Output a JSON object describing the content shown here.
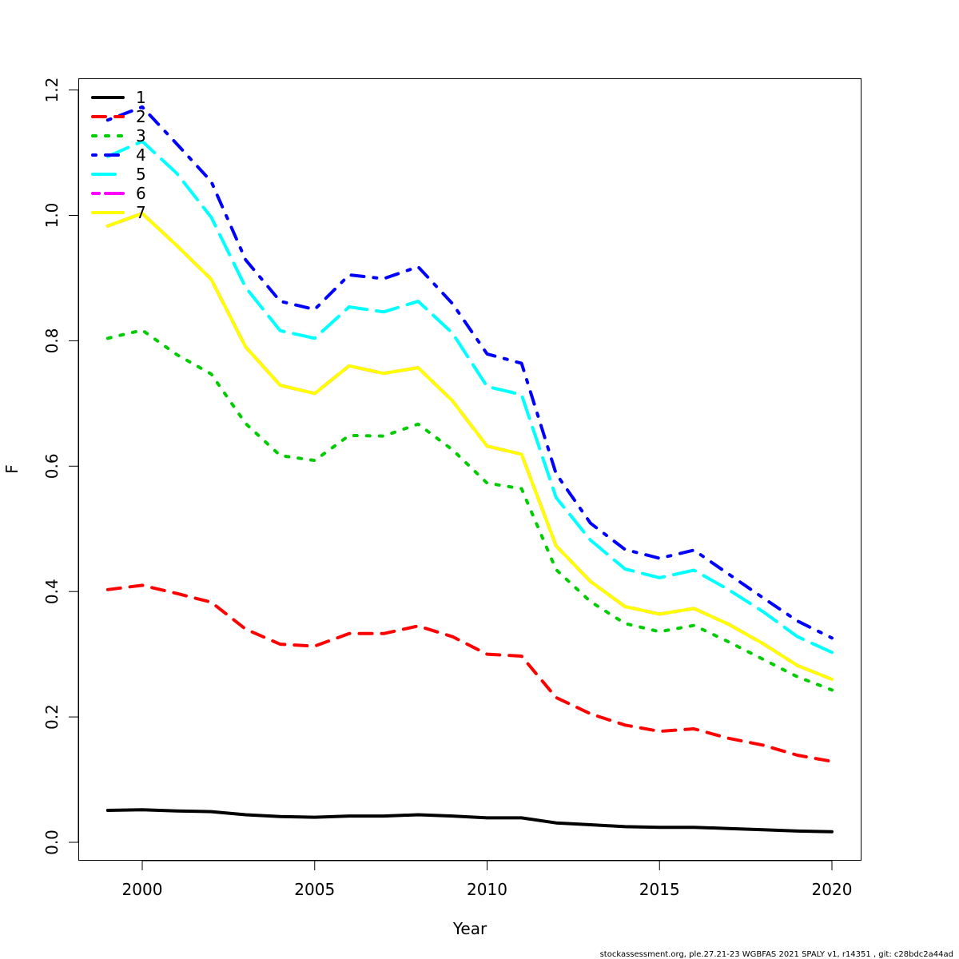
{
  "chart_data": {
    "type": "line",
    "title": "",
    "xlabel": "Year",
    "ylabel": "F",
    "xlim": [
      1998.2,
      2020.85
    ],
    "ylim": [
      -0.028,
      1.228
    ],
    "xticks": [
      2000,
      2005,
      2010,
      2015,
      2020
    ],
    "xtick_labels": [
      "2000",
      "2005",
      "2010",
      "2015",
      "2020"
    ],
    "yticks": [
      0.0,
      0.2,
      0.4,
      0.6,
      0.8,
      1.0,
      1.2
    ],
    "ytick_labels": [
      "0.0",
      "0.2",
      "0.4",
      "0.6",
      "0.8",
      "1.0",
      "1.2"
    ],
    "grid": false,
    "legend_position": "top-left",
    "x": [
      1999,
      2000,
      2001,
      2002,
      2003,
      2004,
      2005,
      2006,
      2007,
      2008,
      2009,
      2010,
      2011,
      2012,
      2013,
      2014,
      2015,
      2016,
      2017,
      2018,
      2019,
      2020
    ],
    "series": [
      {
        "name": "1",
        "color": "#000000",
        "dash": "solid",
        "values": [
          0.051,
          0.052,
          0.05,
          0.049,
          0.044,
          0.041,
          0.04,
          0.042,
          0.042,
          0.044,
          0.042,
          0.039,
          0.039,
          0.031,
          0.028,
          0.025,
          0.024,
          0.024,
          0.022,
          0.02,
          0.018,
          0.017
        ]
      },
      {
        "name": "2",
        "color": "#FF0000",
        "dash": "dashed",
        "values": [
          0.403,
          0.41,
          0.397,
          0.383,
          0.34,
          0.316,
          0.313,
          0.333,
          0.333,
          0.345,
          0.328,
          0.3,
          0.297,
          0.231,
          0.205,
          0.187,
          0.177,
          0.181,
          0.166,
          0.155,
          0.139,
          0.129
        ]
      },
      {
        "name": "3",
        "color": "#00CD00",
        "dash": "dotted",
        "values": [
          0.804,
          0.817,
          0.778,
          0.747,
          0.668,
          0.617,
          0.609,
          0.649,
          0.648,
          0.667,
          0.626,
          0.573,
          0.564,
          0.435,
          0.384,
          0.349,
          0.336,
          0.346,
          0.32,
          0.292,
          0.264,
          0.243
        ]
      },
      {
        "name": "4",
        "color": "#0000FF",
        "dash": "dotdash",
        "values": [
          1.152,
          1.173,
          1.114,
          1.054,
          0.929,
          0.863,
          0.85,
          0.905,
          0.899,
          0.918,
          0.859,
          0.779,
          0.764,
          0.588,
          0.509,
          0.467,
          0.453,
          0.466,
          0.428,
          0.39,
          0.353,
          0.326
        ]
      },
      {
        "name": "5",
        "color": "#00FFFF",
        "dash": "longdash",
        "values": [
          1.094,
          1.118,
          1.067,
          0.997,
          0.885,
          0.816,
          0.804,
          0.854,
          0.846,
          0.863,
          0.812,
          0.727,
          0.714,
          0.55,
          0.482,
          0.436,
          0.422,
          0.434,
          0.403,
          0.368,
          0.328,
          0.303
        ]
      },
      {
        "name": "6",
        "color": "#FF00FF",
        "dash": "twodash",
        "values": [
          0.983,
          1.003,
          0.952,
          0.898,
          0.79,
          0.729,
          0.716,
          0.76,
          0.748,
          0.757,
          0.704,
          0.632,
          0.619,
          0.473,
          0.416,
          0.376,
          0.364,
          0.373,
          0.348,
          0.317,
          0.282,
          0.26
        ]
      },
      {
        "name": "7",
        "color": "#FFFF00",
        "dash": "solid",
        "values": [
          0.983,
          1.003,
          0.952,
          0.898,
          0.79,
          0.729,
          0.716,
          0.76,
          0.748,
          0.757,
          0.704,
          0.632,
          0.619,
          0.473,
          0.416,
          0.376,
          0.364,
          0.373,
          0.348,
          0.317,
          0.282,
          0.26
        ]
      }
    ]
  },
  "footer": "stockassessment.org, ple.27.21-23 WGBFAS 2021 SPALY v1, r14351 , git: c28bdc2a44ad"
}
